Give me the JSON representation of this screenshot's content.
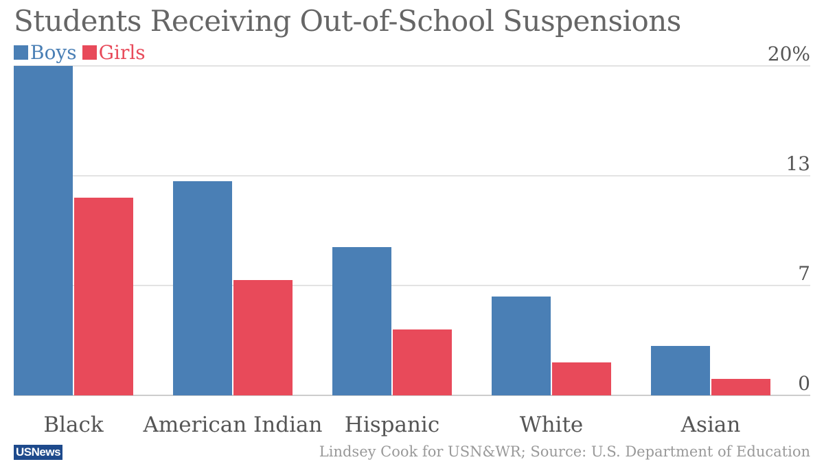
{
  "chart_data": {
    "type": "bar",
    "title": "Students Receiving Out-of-School Suspensions",
    "categories": [
      "Black",
      "American Indian",
      "Hispanic",
      "White",
      "Asian"
    ],
    "series": [
      {
        "name": "Boys",
        "color": "#4a7fb5",
        "values": [
          20,
          13.0,
          9.0,
          6.0,
          3.0
        ]
      },
      {
        "name": "Girls",
        "color": "#e84a5a",
        "values": [
          12.0,
          7.0,
          4.0,
          2.0,
          1.0
        ]
      }
    ],
    "yticks": [
      {
        "value": 0,
        "label": "0"
      },
      {
        "value": 6.67,
        "label": "7"
      },
      {
        "value": 13.33,
        "label": "13"
      },
      {
        "value": 20,
        "label": "20%"
      }
    ],
    "ylim": [
      0,
      20
    ],
    "xlabel": "",
    "ylabel": ""
  },
  "legend": {
    "boys": "Boys",
    "girls": "Girls"
  },
  "footer": {
    "logo": "USNews",
    "source": "Lindsey Cook for USN&WR; Source: U.S. Department of Education"
  },
  "colors": {
    "boys": "#4a7fb5",
    "girls": "#e84a5a",
    "grid": "#d9d9d9",
    "axis_text": "#555555"
  }
}
